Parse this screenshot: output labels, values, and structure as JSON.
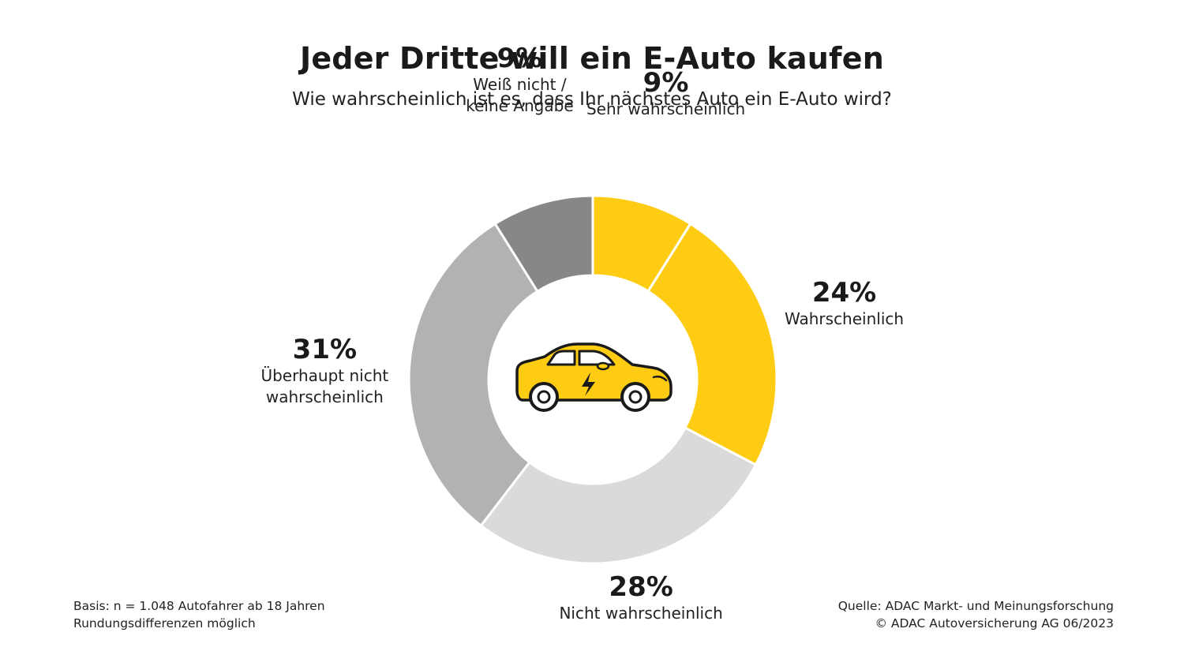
{
  "chart_data": {
    "type": "pie",
    "title": "Jeder Dritte will ein E-Auto kaufen",
    "subtitle": "Wie wahrscheinlich ist es, dass Ihr nächstes Auto ein E-Auto wird?",
    "unit": "%",
    "categories": [
      "Sehr wahrscheinlich",
      "Wahrscheinlich",
      "Nicht wahrscheinlich",
      "Überhaupt nicht wahrscheinlich",
      "Weiß nicht / keine Angabe"
    ],
    "values": [
      9,
      24,
      28,
      31,
      9
    ],
    "value_labels": [
      "9%",
      "24%",
      "28%",
      "31%",
      "9%"
    ],
    "label_lines": [
      [
        "Sehr wahrscheinlich"
      ],
      [
        "Wahrscheinlich"
      ],
      [
        "Nicht wahrscheinlich"
      ],
      [
        "Überhaupt nicht",
        "wahrscheinlich"
      ],
      [
        "Weiß nicht /",
        "keine Angabe"
      ]
    ],
    "colors": [
      "#FFCC14",
      "#FFCC14",
      "#DADADA",
      "#B2B2B2",
      "#878787"
    ],
    "center_icon": "electric-car-icon",
    "legend": "none"
  },
  "footnotes": {
    "basis": "Basis: n = 1.048 Autofahrer ab 18 Jahren",
    "rounding": "Rundungsdifferenzen möglich",
    "source": "Quelle: ADAC Markt- und Meinungsforschung",
    "copyright": "© ADAC Autoversicherung AG 06/2023"
  },
  "colors": {
    "accent": "#FFCC14",
    "icon_stroke": "#1a1a1a"
  }
}
